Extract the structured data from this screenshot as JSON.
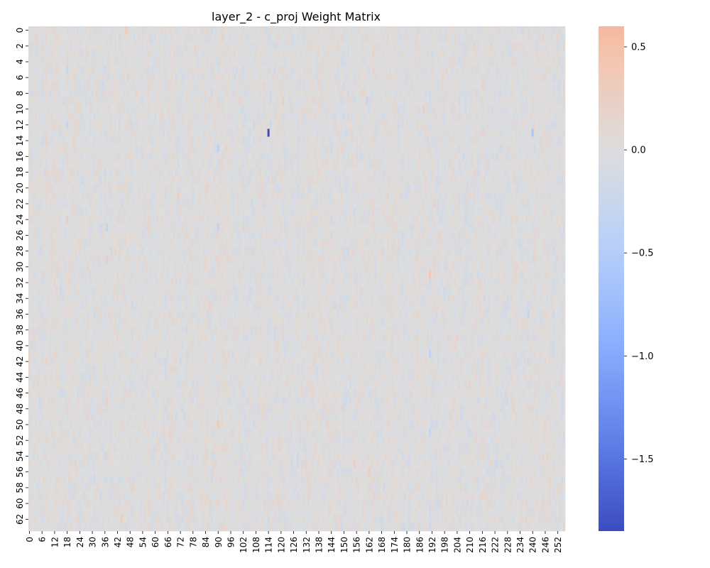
{
  "chart_data": {
    "type": "heatmap",
    "title": "layer_2 - c_proj Weight Matrix",
    "xlabel": "",
    "ylabel": "",
    "rows": 64,
    "cols": 256,
    "x_ticks": [
      0,
      6,
      12,
      18,
      24,
      30,
      36,
      42,
      48,
      54,
      60,
      66,
      72,
      78,
      84,
      90,
      96,
      102,
      108,
      114,
      120,
      126,
      132,
      138,
      144,
      150,
      156,
      162,
      168,
      174,
      180,
      186,
      192,
      198,
      204,
      210,
      216,
      222,
      228,
      234,
      240,
      246,
      252
    ],
    "y_ticks": [
      0,
      2,
      4,
      6,
      8,
      10,
      12,
      14,
      16,
      18,
      20,
      22,
      24,
      26,
      28,
      30,
      32,
      34,
      36,
      38,
      40,
      42,
      44,
      46,
      48,
      50,
      52,
      54,
      56,
      58,
      60,
      62
    ],
    "vmin": -1.85,
    "vmax": 0.6,
    "colormap": "coolwarm",
    "colorbar_ticks": [
      0.5,
      0.0,
      -0.5,
      -1.0,
      -1.5
    ],
    "colorbar_tick_labels": [
      "0.5",
      "0.0",
      "−0.5",
      "−1.0",
      "−1.5"
    ],
    "notable_cells": [
      {
        "row": 13,
        "col": 114,
        "value": -1.85
      },
      {
        "row": 13,
        "col": 240,
        "value": -0.6
      },
      {
        "row": 31,
        "col": 191,
        "value": 0.4
      },
      {
        "row": 9,
        "col": 121,
        "value": 0.3
      },
      {
        "row": 10,
        "col": 188,
        "value": 0.3
      },
      {
        "row": 50,
        "col": 90,
        "value": 0.35
      },
      {
        "row": 15,
        "col": 90,
        "value": -0.4
      },
      {
        "row": 25,
        "col": 90,
        "value": -0.4
      },
      {
        "row": 25,
        "col": 37,
        "value": -0.35
      },
      {
        "row": 24,
        "col": 18,
        "value": 0.3
      },
      {
        "row": 5,
        "col": 18,
        "value": -0.3
      },
      {
        "row": 12,
        "col": 18,
        "value": -0.3
      },
      {
        "row": 29,
        "col": 37,
        "value": 0.3
      },
      {
        "row": 47,
        "col": 37,
        "value": 0.3
      },
      {
        "row": 21,
        "col": 71,
        "value": 0.3
      },
      {
        "row": 56,
        "col": 162,
        "value": 0.3
      },
      {
        "row": 55,
        "col": 155,
        "value": 0.3
      },
      {
        "row": 36,
        "col": 238,
        "value": -0.35
      },
      {
        "row": 41,
        "col": 191,
        "value": -0.35
      },
      {
        "row": 51,
        "col": 191,
        "value": -0.3
      },
      {
        "row": 9,
        "col": 161,
        "value": -0.3
      },
      {
        "row": 0,
        "col": 46,
        "value": 0.3
      },
      {
        "row": 62,
        "col": 44,
        "value": 0.3
      }
    ]
  }
}
